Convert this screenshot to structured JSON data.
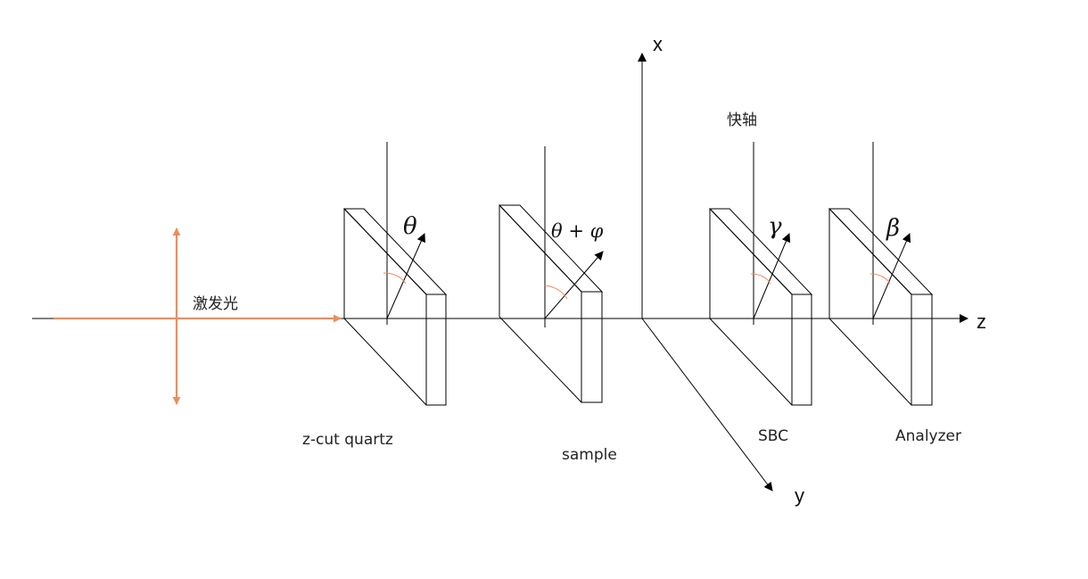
{
  "axes": {
    "x_label": "x",
    "y_label": "y",
    "z_label": "z"
  },
  "fast_axis_label": "快轴",
  "beam": {
    "label": "激发光",
    "color": "#ed8d5a"
  },
  "plates": [
    {
      "id": "quartz",
      "caption": "z-cut quartz",
      "angle_label": "θ"
    },
    {
      "id": "sample",
      "caption": "sample",
      "angle_label": "θ + φ"
    },
    {
      "id": "sbc",
      "caption": "SBC",
      "angle_label": "γ"
    },
    {
      "id": "analyzer",
      "caption": "Analyzer",
      "angle_label": "β"
    }
  ],
  "colors": {
    "line": "#000000",
    "angle_arc": "#ed8d5a"
  }
}
